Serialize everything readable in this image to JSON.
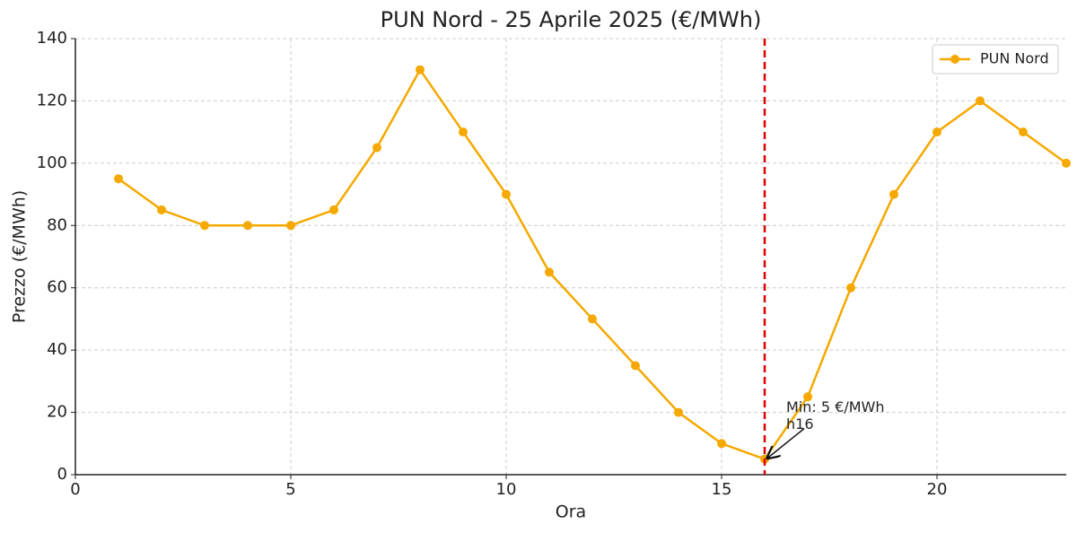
{
  "chart_data": {
    "type": "line",
    "title": "PUN Nord - 25 Aprile 2025 (€/MWh)",
    "x_label": "Ora",
    "y_label": "Prezzo (€/MWh)",
    "x": [
      1,
      2,
      3,
      4,
      5,
      6,
      7,
      8,
      9,
      10,
      11,
      12,
      13,
      14,
      15,
      16,
      17,
      18,
      19,
      20,
      21,
      22,
      23
    ],
    "series": [
      {
        "name": "PUN Nord",
        "color": "#f5a800",
        "values": [
          95,
          85,
          80,
          80,
          80,
          85,
          105,
          130,
          110,
          90,
          65,
          50,
          35,
          20,
          10,
          5,
          25,
          60,
          90,
          110,
          120,
          110,
          100
        ]
      }
    ],
    "xlim": [
      0,
      23
    ],
    "xticks": [
      0,
      5,
      10,
      15,
      20
    ],
    "ylim": [
      0,
      140
    ],
    "yticks": [
      0,
      20,
      40,
      60,
      80,
      100,
      120,
      140
    ],
    "grid": true,
    "legend": "upper right",
    "vline": {
      "x": 16,
      "color": "#e00000"
    },
    "annotation": {
      "lines": [
        "Min: 5 €/MWh",
        "h16"
      ],
      "x": 16,
      "y": 5
    }
  }
}
